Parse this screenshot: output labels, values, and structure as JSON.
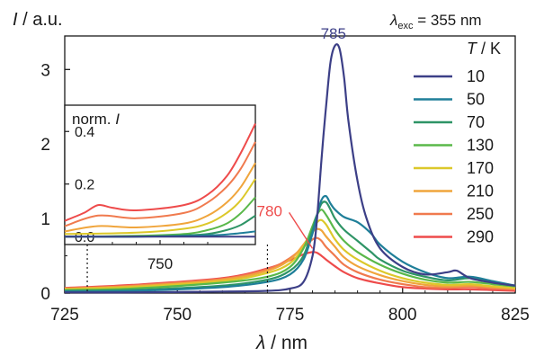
{
  "chart_data": {
    "type": "line",
    "ylabel": "I / a.u.",
    "xlabel": "λ / nm",
    "xlim": [
      725,
      825
    ],
    "ylim": [
      0,
      3.45
    ],
    "xticks": [
      725,
      750,
      775,
      800,
      825
    ],
    "yticks": [
      0,
      1,
      2,
      3
    ],
    "legend": {
      "excitation_label": "λexc = 355 nm",
      "title": "T / K",
      "placement": "top-right"
    },
    "annotations": [
      {
        "text": "785",
        "x": 785,
        "y": 3.32,
        "color": "#3c3f87"
      },
      {
        "text": "780",
        "x": 780,
        "y": 0.55,
        "color": "#ee4b4b"
      }
    ],
    "series": [
      {
        "name": "10",
        "color": "#3c3f87",
        "points": [
          [
            725,
            0.01
          ],
          [
            740,
            0.01
          ],
          [
            760,
            0.02
          ],
          [
            770,
            0.03
          ],
          [
            775,
            0.06
          ],
          [
            778,
            0.15
          ],
          [
            780,
            0.5
          ],
          [
            781,
            1.0
          ],
          [
            782,
            1.8
          ],
          [
            783,
            2.5
          ],
          [
            784,
            3.1
          ],
          [
            785,
            3.32
          ],
          [
            786,
            3.28
          ],
          [
            787,
            2.9
          ],
          [
            788,
            2.3
          ],
          [
            790,
            1.5
          ],
          [
            792,
            1.0
          ],
          [
            795,
            0.6
          ],
          [
            800,
            0.35
          ],
          [
            805,
            0.25
          ],
          [
            810,
            0.28
          ],
          [
            812,
            0.3
          ],
          [
            815,
            0.2
          ],
          [
            820,
            0.14
          ],
          [
            825,
            0.1
          ]
        ]
      },
      {
        "name": "50",
        "color": "#1f7f99",
        "points": [
          [
            725,
            0.02
          ],
          [
            740,
            0.03
          ],
          [
            760,
            0.08
          ],
          [
            770,
            0.15
          ],
          [
            775,
            0.25
          ],
          [
            778,
            0.45
          ],
          [
            780,
            0.8
          ],
          [
            781,
            1.05
          ],
          [
            782,
            1.25
          ],
          [
            783,
            1.3
          ],
          [
            784,
            1.2
          ],
          [
            785,
            1.12
          ],
          [
            787,
            1.02
          ],
          [
            790,
            0.95
          ],
          [
            793,
            0.8
          ],
          [
            795,
            0.65
          ],
          [
            800,
            0.42
          ],
          [
            805,
            0.28
          ],
          [
            810,
            0.2
          ],
          [
            815,
            0.22
          ],
          [
            820,
            0.16
          ],
          [
            825,
            0.1
          ]
        ]
      },
      {
        "name": "70",
        "color": "#2e9466",
        "points": [
          [
            725,
            0.03
          ],
          [
            740,
            0.04
          ],
          [
            760,
            0.1
          ],
          [
            770,
            0.18
          ],
          [
            775,
            0.3
          ],
          [
            778,
            0.5
          ],
          [
            780,
            0.85
          ],
          [
            781,
            1.05
          ],
          [
            782,
            1.2
          ],
          [
            783,
            1.22
          ],
          [
            784,
            1.12
          ],
          [
            785,
            1.0
          ],
          [
            787,
            0.85
          ],
          [
            790,
            0.7
          ],
          [
            793,
            0.55
          ],
          [
            795,
            0.45
          ],
          [
            800,
            0.3
          ],
          [
            805,
            0.22
          ],
          [
            810,
            0.17
          ],
          [
            815,
            0.2
          ],
          [
            820,
            0.14
          ],
          [
            825,
            0.1
          ]
        ]
      },
      {
        "name": "130",
        "color": "#5ab84a",
        "points": [
          [
            725,
            0.04
          ],
          [
            740,
            0.06
          ],
          [
            760,
            0.14
          ],
          [
            770,
            0.22
          ],
          [
            775,
            0.35
          ],
          [
            778,
            0.6
          ],
          [
            780,
            0.9
          ],
          [
            781,
            1.05
          ],
          [
            782,
            1.12
          ],
          [
            783,
            1.05
          ],
          [
            784,
            0.95
          ],
          [
            785,
            0.85
          ],
          [
            787,
            0.7
          ],
          [
            790,
            0.55
          ],
          [
            795,
            0.38
          ],
          [
            800,
            0.26
          ],
          [
            805,
            0.18
          ],
          [
            810,
            0.14
          ],
          [
            815,
            0.15
          ],
          [
            820,
            0.12
          ],
          [
            825,
            0.09
          ]
        ]
      },
      {
        "name": "170",
        "color": "#dcc82a",
        "points": [
          [
            725,
            0.05
          ],
          [
            740,
            0.08
          ],
          [
            760,
            0.16
          ],
          [
            770,
            0.27
          ],
          [
            775,
            0.4
          ],
          [
            778,
            0.62
          ],
          [
            780,
            0.85
          ],
          [
            781,
            0.95
          ],
          [
            782,
            0.98
          ],
          [
            783,
            0.92
          ],
          [
            784,
            0.82
          ],
          [
            785,
            0.72
          ],
          [
            787,
            0.58
          ],
          [
            790,
            0.45
          ],
          [
            795,
            0.3
          ],
          [
            800,
            0.2
          ],
          [
            805,
            0.14
          ],
          [
            810,
            0.11
          ],
          [
            815,
            0.12
          ],
          [
            820,
            0.09
          ],
          [
            825,
            0.07
          ]
        ]
      },
      {
        "name": "210",
        "color": "#f0a53c",
        "points": [
          [
            725,
            0.06
          ],
          [
            740,
            0.09
          ],
          [
            760,
            0.18
          ],
          [
            770,
            0.3
          ],
          [
            775,
            0.45
          ],
          [
            778,
            0.65
          ],
          [
            780,
            0.82
          ],
          [
            781,
            0.86
          ],
          [
            782,
            0.84
          ],
          [
            783,
            0.76
          ],
          [
            785,
            0.62
          ],
          [
            787,
            0.48
          ],
          [
            790,
            0.36
          ],
          [
            795,
            0.24
          ],
          [
            800,
            0.16
          ],
          [
            805,
            0.11
          ],
          [
            810,
            0.09
          ],
          [
            815,
            0.1
          ],
          [
            820,
            0.08
          ],
          [
            825,
            0.06
          ]
        ]
      },
      {
        "name": "250",
        "color": "#f07a4e",
        "points": [
          [
            725,
            0.06
          ],
          [
            740,
            0.1
          ],
          [
            760,
            0.19
          ],
          [
            770,
            0.32
          ],
          [
            775,
            0.47
          ],
          [
            778,
            0.62
          ],
          [
            780,
            0.72
          ],
          [
            781,
            0.74
          ],
          [
            782,
            0.7
          ],
          [
            783,
            0.62
          ],
          [
            785,
            0.5
          ],
          [
            787,
            0.38
          ],
          [
            790,
            0.28
          ],
          [
            795,
            0.18
          ],
          [
            800,
            0.12
          ],
          [
            805,
            0.08
          ],
          [
            810,
            0.07
          ],
          [
            815,
            0.08
          ],
          [
            820,
            0.06
          ],
          [
            825,
            0.05
          ]
        ]
      },
      {
        "name": "290",
        "color": "#ee4b4b",
        "points": [
          [
            725,
            0.07
          ],
          [
            740,
            0.11
          ],
          [
            760,
            0.2
          ],
          [
            770,
            0.33
          ],
          [
            775,
            0.44
          ],
          [
            778,
            0.52
          ],
          [
            780,
            0.55
          ],
          [
            781,
            0.54
          ],
          [
            782,
            0.5
          ],
          [
            783,
            0.45
          ],
          [
            785,
            0.36
          ],
          [
            787,
            0.28
          ],
          [
            790,
            0.2
          ],
          [
            795,
            0.13
          ],
          [
            800,
            0.08
          ],
          [
            805,
            0.06
          ],
          [
            810,
            0.05
          ],
          [
            815,
            0.05
          ],
          [
            820,
            0.04
          ],
          [
            825,
            0.03
          ]
        ]
      }
    ],
    "inset": {
      "ylabel": "norm. I",
      "xlim": [
        730,
        770
      ],
      "ylim": [
        -0.03,
        0.5
      ],
      "xticks": [
        750
      ],
      "yticks": [
        0.0,
        0.2,
        0.4
      ],
      "series": [
        {
          "name": "10",
          "color": "#3c3f87",
          "points": [
            [
              730,
              0.0
            ],
            [
              740,
              0.0
            ],
            [
              750,
              0.0
            ],
            [
              760,
              0.0
            ],
            [
              770,
              0.0
            ]
          ]
        },
        {
          "name": "50",
          "color": "#1f7f99",
          "points": [
            [
              730,
              0.0
            ],
            [
              745,
              0.0
            ],
            [
              760,
              0.005
            ],
            [
              765,
              0.01
            ],
            [
              770,
              0.02
            ]
          ]
        },
        {
          "name": "70",
          "color": "#2e9466",
          "points": [
            [
              730,
              0.0
            ],
            [
              745,
              0.0
            ],
            [
              755,
              0.005
            ],
            [
              760,
              0.01
            ],
            [
              764,
              0.025
            ],
            [
              767,
              0.045
            ],
            [
              770,
              0.08
            ]
          ]
        },
        {
          "name": "130",
          "color": "#5ab84a",
          "points": [
            [
              730,
              0.0
            ],
            [
              745,
              0.003
            ],
            [
              755,
              0.01
            ],
            [
              760,
              0.025
            ],
            [
              764,
              0.05
            ],
            [
              767,
              0.09
            ],
            [
              770,
              0.15
            ]
          ]
        },
        {
          "name": "170",
          "color": "#dcc82a",
          "points": [
            [
              730,
              0.01
            ],
            [
              745,
              0.015
            ],
            [
              755,
              0.03
            ],
            [
              760,
              0.05
            ],
            [
              764,
              0.09
            ],
            [
              767,
              0.14
            ],
            [
              770,
              0.22
            ]
          ]
        },
        {
          "name": "210",
          "color": "#f0a53c",
          "points": [
            [
              730,
              0.02
            ],
            [
              737,
              0.04
            ],
            [
              745,
              0.035
            ],
            [
              755,
              0.05
            ],
            [
              760,
              0.08
            ],
            [
              764,
              0.13
            ],
            [
              767,
              0.19
            ],
            [
              770,
              0.28
            ]
          ]
        },
        {
          "name": "250",
          "color": "#f07a4e",
          "points": [
            [
              730,
              0.04
            ],
            [
              737,
              0.08
            ],
            [
              745,
              0.07
            ],
            [
              755,
              0.09
            ],
            [
              760,
              0.13
            ],
            [
              764,
              0.19
            ],
            [
              767,
              0.26
            ],
            [
              770,
              0.36
            ]
          ]
        },
        {
          "name": "290",
          "color": "#ee4b4b",
          "points": [
            [
              730,
              0.06
            ],
            [
              734,
              0.09
            ],
            [
              737,
              0.12
            ],
            [
              740,
              0.11
            ],
            [
              745,
              0.1
            ],
            [
              755,
              0.12
            ],
            [
              760,
              0.16
            ],
            [
              764,
              0.23
            ],
            [
              767,
              0.32
            ],
            [
              770,
              0.43
            ]
          ]
        }
      ]
    }
  }
}
